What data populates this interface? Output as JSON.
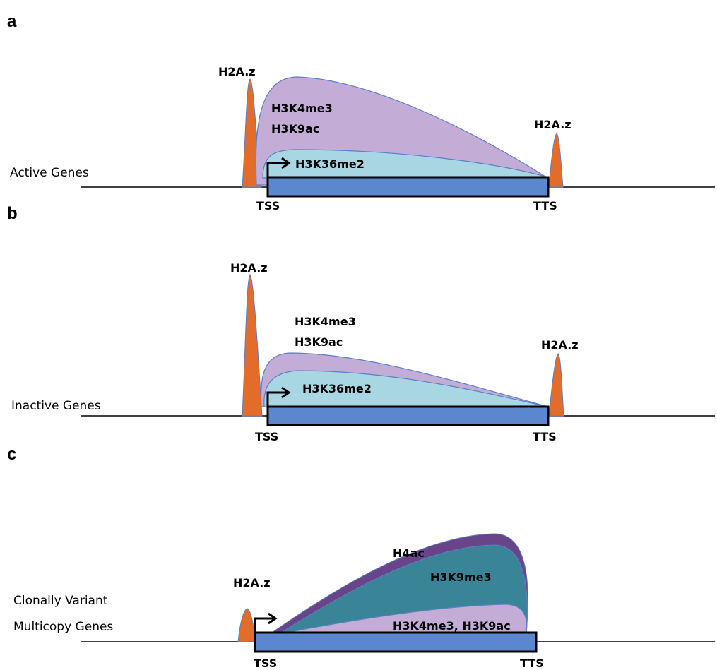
{
  "colors": {
    "h2az": "#e46c2a",
    "h3k4me3_h3k9ac": "#c3add6",
    "h3k36me2": "#a9d6e3",
    "gene_box": "#5b87cf",
    "h4ac": "#6a4489",
    "h3k9me3": "#3a8497",
    "outline": "#5a7fc7",
    "line": "#000000"
  },
  "panels": [
    {
      "letter": "a",
      "row_label": "Active Genes",
      "h2az_left": "H2A.z",
      "h2az_right": "H2A.z",
      "mark_top_1": "H3K4me3",
      "mark_top_2": "H3K9ac",
      "mark_inner": "H3K36me2",
      "tss": "TSS",
      "tts": "TTS"
    },
    {
      "letter": "b",
      "row_label": "Inactive Genes",
      "h2az_left": "H2A.z",
      "h2az_right": "H2A.z",
      "mark_top_1": "H3K4me3",
      "mark_top_2": "H3K9ac",
      "mark_inner": "H3K36me2",
      "tss": "TSS",
      "tts": "TTS"
    },
    {
      "letter": "c",
      "row_label_1": "Clonally Variant",
      "row_label_2": "Multicopy Genes",
      "h2az_left": "H2A.z",
      "mark_h4ac": "H4ac",
      "mark_h3k9me3": "H3K9me3",
      "mark_bottom": "H3K4me3, H3K9ac",
      "tss": "TSS",
      "tts": "TTS"
    }
  ]
}
